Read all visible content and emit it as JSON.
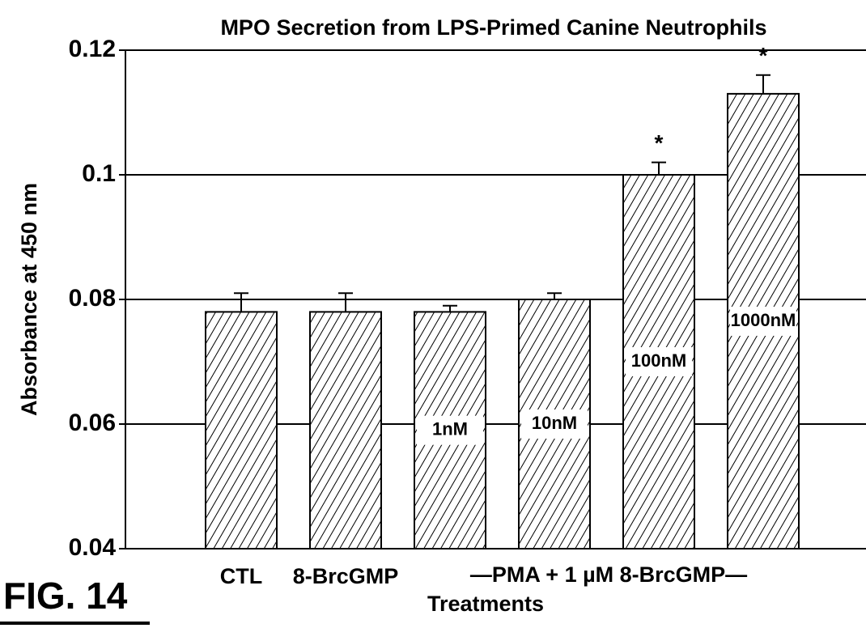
{
  "chart_data": {
    "type": "bar",
    "title": "MPO Secretion from LPS-Primed Canine Neutrophils",
    "y_label": "Absorbance at 450 nm",
    "x_label": "Treatments",
    "group_label": "—PMA + 1 µM 8-BrcGMP—",
    "figure_label": "FIG. 14",
    "categories": [
      "CTL",
      "8-BrcGMP",
      "1nM",
      "10nM",
      "100nM",
      "1000nM"
    ],
    "values": [
      0.078,
      0.078,
      0.078,
      0.08,
      0.1,
      0.113
    ],
    "errors": [
      0.003,
      0.003,
      0.001,
      0.001,
      0.002,
      0.003
    ],
    "markers": [
      null,
      null,
      null,
      null,
      "*",
      "*"
    ],
    "color": "#000000",
    "ylim": [
      0.04,
      0.12
    ],
    "yticks": [
      0.04,
      0.06,
      0.08,
      0.1,
      0.12
    ],
    "grid": true
  }
}
